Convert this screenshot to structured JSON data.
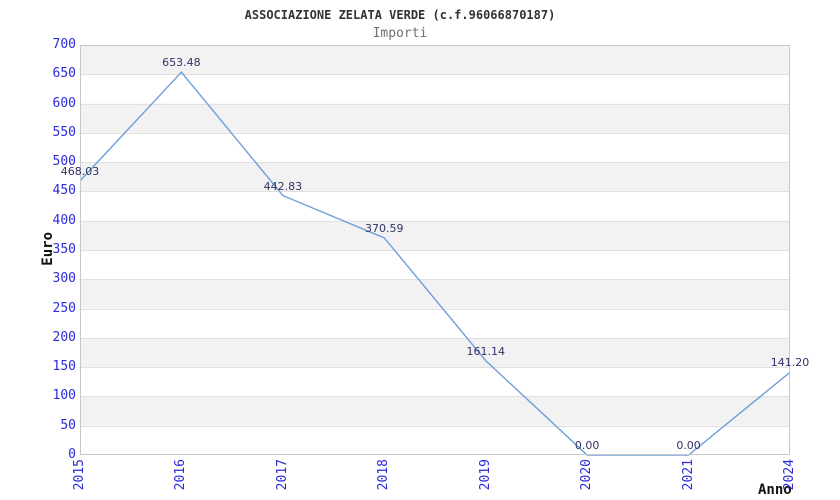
{
  "header": {
    "title": "ASSOCIAZIONE ZELATA VERDE (c.f.96066870187)",
    "subtitle": "Importi"
  },
  "chart_data": {
    "type": "line",
    "title": "ASSOCIAZIONE ZELATA VERDE (c.f.96066870187)",
    "subtitle": "Importi",
    "xlabel": "Anno",
    "ylabel": "Euro",
    "categories": [
      "2015",
      "2016",
      "2017",
      "2018",
      "2019",
      "2020",
      "2021",
      "2024"
    ],
    "values": [
      468.03,
      653.48,
      442.83,
      370.59,
      161.14,
      0.0,
      0.0,
      141.2
    ],
    "point_labels": [
      "468.03",
      "653.48",
      "442.83",
      "370.59",
      "161.14",
      "0.00",
      "0.00",
      "141.20"
    ],
    "ylim": [
      0,
      700
    ],
    "yticks": [
      0,
      50,
      100,
      150,
      200,
      250,
      300,
      350,
      400,
      450,
      500,
      550,
      600,
      650,
      700
    ],
    "grid": true,
    "band_fill": "alternating-horizontal",
    "legend_position": "none"
  },
  "colors": {
    "line": "#6f9fd8",
    "tick_label": "#2b2bdc",
    "point_label": "#333366",
    "band_gray": "#f2f2f2",
    "gridline": "#e0e0e0",
    "plot_border": "#c8c8c8",
    "title": "#333333",
    "subtitle": "#707070",
    "axis_title": "#111111",
    "background": "#ffffff"
  }
}
